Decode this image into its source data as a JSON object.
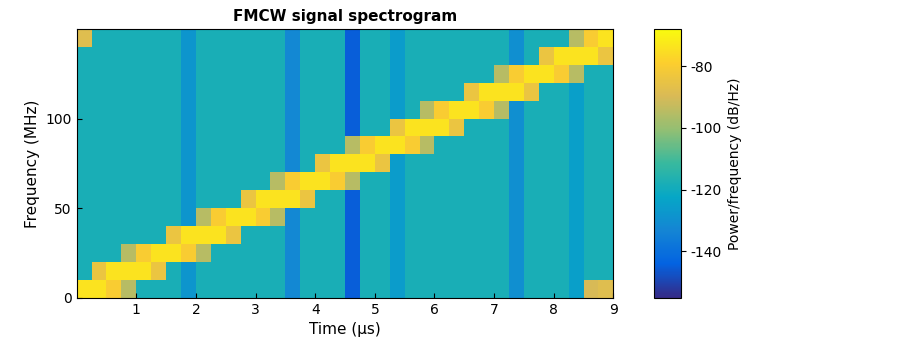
{
  "chart_data": {
    "type": "heatmap",
    "title": "FMCW signal spectrogram",
    "x_label": "Time (μs)",
    "y_label": "Frequency (MHz)",
    "x": [
      0,
      0.25,
      0.5,
      0.75,
      1,
      1.25,
      1.5,
      1.75,
      2,
      2.25,
      2.5,
      2.75,
      3,
      3.25,
      3.5,
      3.75,
      4,
      4.25,
      4.5,
      4.75,
      5,
      5.25,
      5.5,
      5.75,
      6,
      6.25,
      6.5,
      6.75,
      7,
      7.25,
      7.5,
      7.75,
      8,
      8.25,
      8.5,
      8.75,
      9
    ],
    "y": [
      0,
      10,
      20,
      30,
      40,
      50,
      60,
      70,
      80,
      90,
      100,
      110,
      120,
      130,
      140,
      150
    ],
    "xlim": [
      0,
      9
    ],
    "xticks": [
      1,
      2,
      3,
      4,
      5,
      6,
      7,
      8,
      9
    ],
    "ylim": [
      0,
      150
    ],
    "yticks": [
      0,
      50,
      100
    ],
    "cells": [
      [
        -74,
        -74,
        -80,
        -95,
        -118,
        -118,
        -118,
        -128,
        -118,
        -118,
        -118,
        -118,
        -118,
        -118,
        -132,
        -118,
        -118,
        -118,
        -145,
        -118,
        -118,
        -126,
        -118,
        -118,
        -118,
        -118,
        -118,
        -118,
        -118,
        -130,
        -118,
        -118,
        -118,
        -125,
        -90,
        -88
      ],
      [
        -118,
        -84,
        -74,
        -74,
        -74,
        -84,
        -118,
        -128,
        -118,
        -118,
        -118,
        -118,
        -118,
        -118,
        -132,
        -118,
        -118,
        -118,
        -145,
        -118,
        -118,
        -126,
        -118,
        -118,
        -118,
        -118,
        -118,
        -118,
        -118,
        -130,
        -118,
        -118,
        -118,
        -125,
        -118,
        -118
      ],
      [
        -118,
        -118,
        -118,
        -95,
        -80,
        -74,
        -74,
        -80,
        -95,
        -118,
        -118,
        -118,
        -118,
        -118,
        -132,
        -118,
        -118,
        -118,
        -145,
        -118,
        -118,
        -126,
        -118,
        -118,
        -118,
        -118,
        -118,
        -118,
        -118,
        -130,
        -118,
        -118,
        -118,
        -125,
        -118,
        -118
      ],
      [
        -118,
        -118,
        -118,
        -118,
        -118,
        -118,
        -84,
        -74,
        -74,
        -74,
        -84,
        -118,
        -118,
        -118,
        -132,
        -118,
        -118,
        -118,
        -145,
        -118,
        -118,
        -126,
        -118,
        -118,
        -118,
        -118,
        -118,
        -118,
        -118,
        -130,
        -118,
        -118,
        -118,
        -125,
        -118,
        -118
      ],
      [
        -118,
        -118,
        -118,
        -118,
        -118,
        -118,
        -118,
        -128,
        -95,
        -80,
        -74,
        -74,
        -80,
        -95,
        -132,
        -118,
        -118,
        -118,
        -145,
        -118,
        -118,
        -126,
        -118,
        -118,
        -118,
        -118,
        -118,
        -118,
        -118,
        -130,
        -118,
        -118,
        -118,
        -125,
        -118,
        -118
      ],
      [
        -118,
        -118,
        -118,
        -118,
        -118,
        -118,
        -118,
        -128,
        -118,
        -118,
        -118,
        -84,
        -74,
        -74,
        -74,
        -84,
        -118,
        -118,
        -145,
        -118,
        -118,
        -126,
        -118,
        -118,
        -118,
        -118,
        -118,
        -118,
        -118,
        -130,
        -118,
        -118,
        -118,
        -125,
        -118,
        -118
      ],
      [
        -118,
        -118,
        -118,
        -118,
        -118,
        -118,
        -118,
        -128,
        -118,
        -118,
        -118,
        -118,
        -118,
        -95,
        -80,
        -74,
        -74,
        -80,
        -95,
        -118,
        -118,
        -126,
        -118,
        -118,
        -118,
        -118,
        -118,
        -118,
        -118,
        -130,
        -118,
        -118,
        -118,
        -125,
        -118,
        -118
      ],
      [
        -118,
        -118,
        -118,
        -118,
        -118,
        -118,
        -118,
        -128,
        -118,
        -118,
        -118,
        -118,
        -118,
        -118,
        -132,
        -118,
        -84,
        -74,
        -74,
        -74,
        -84,
        -126,
        -118,
        -118,
        -118,
        -118,
        -118,
        -118,
        -118,
        -130,
        -118,
        -118,
        -118,
        -125,
        -118,
        -118
      ],
      [
        -118,
        -118,
        -118,
        -118,
        -118,
        -118,
        -118,
        -128,
        -118,
        -118,
        -118,
        -118,
        -118,
        -118,
        -132,
        -118,
        -118,
        -118,
        -95,
        -80,
        -74,
        -74,
        -80,
        -95,
        -118,
        -118,
        -118,
        -118,
        -118,
        -130,
        -118,
        -118,
        -118,
        -125,
        -118,
        -118
      ],
      [
        -118,
        -118,
        -118,
        -118,
        -118,
        -118,
        -118,
        -128,
        -118,
        -118,
        -118,
        -118,
        -118,
        -118,
        -132,
        -118,
        -118,
        -118,
        -145,
        -118,
        -118,
        -84,
        -74,
        -74,
        -74,
        -84,
        -118,
        -118,
        -118,
        -130,
        -118,
        -118,
        -118,
        -125,
        -118,
        -118
      ],
      [
        -118,
        -118,
        -118,
        -118,
        -118,
        -118,
        -118,
        -128,
        -118,
        -118,
        -118,
        -118,
        -118,
        -118,
        -132,
        -118,
        -118,
        -118,
        -145,
        -118,
        -118,
        -126,
        -118,
        -95,
        -80,
        -74,
        -74,
        -80,
        -95,
        -130,
        -118,
        -118,
        -118,
        -125,
        -118,
        -118
      ],
      [
        -118,
        -118,
        -118,
        -118,
        -118,
        -118,
        -118,
        -128,
        -118,
        -118,
        -118,
        -118,
        -118,
        -118,
        -132,
        -118,
        -118,
        -118,
        -145,
        -118,
        -118,
        -126,
        -118,
        -118,
        -118,
        -118,
        -84,
        -74,
        -74,
        -74,
        -84,
        -118,
        -118,
        -125,
        -118,
        -118
      ],
      [
        -118,
        -118,
        -118,
        -118,
        -118,
        -118,
        -118,
        -128,
        -118,
        -118,
        -118,
        -118,
        -118,
        -118,
        -132,
        -118,
        -118,
        -118,
        -145,
        -118,
        -118,
        -126,
        -118,
        -118,
        -118,
        -118,
        -118,
        -118,
        -95,
        -80,
        -74,
        -74,
        -80,
        -95,
        -118,
        -118
      ],
      [
        -118,
        -118,
        -118,
        -118,
        -118,
        -118,
        -118,
        -128,
        -118,
        -118,
        -118,
        -118,
        -118,
        -118,
        -132,
        -118,
        -118,
        -118,
        -145,
        -118,
        -118,
        -126,
        -118,
        -118,
        -118,
        -118,
        -118,
        -118,
        -118,
        -130,
        -118,
        -84,
        -74,
        -74,
        -74,
        -84
      ],
      [
        -88,
        -118,
        -118,
        -118,
        -118,
        -118,
        -118,
        -128,
        -118,
        -118,
        -118,
        -118,
        -118,
        -118,
        -132,
        -118,
        -118,
        -118,
        -145,
        -118,
        -118,
        -126,
        -118,
        -118,
        -118,
        -118,
        -118,
        -118,
        -118,
        -130,
        -118,
        -118,
        -118,
        -95,
        -80,
        -74
      ]
    ],
    "colorbar_label": "Power/frequency (dB/Hz)",
    "colorbar_range": [
      -155,
      -68
    ],
    "colorbar_ticks": [
      -140,
      -120,
      -100,
      -80
    ],
    "grid": false
  }
}
